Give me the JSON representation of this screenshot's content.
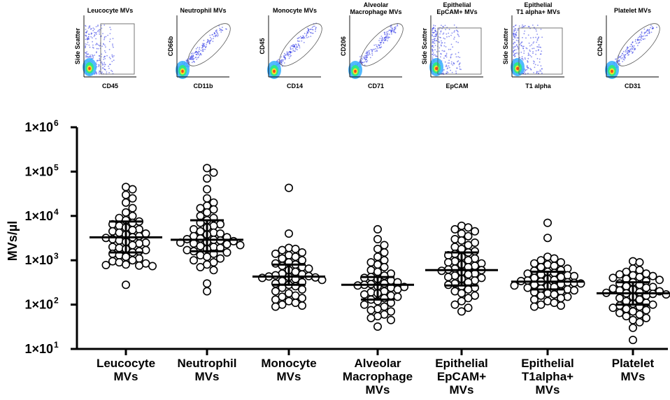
{
  "colors": {
    "axis": "#000000",
    "point_fill": "#ffffff",
    "point_stroke": "#000000",
    "density": [
      "#2b35e6",
      "#3fb3ff",
      "#2ee88a",
      "#f0e62a",
      "#f2421e"
    ]
  },
  "gating_panels": [
    {
      "title": [
        "Leucocyte MVs"
      ],
      "xlabel": "CD45",
      "ylabel": "Side Scatter",
      "gate": "rect"
    },
    {
      "title": [
        "Neutrophil MVs"
      ],
      "xlabel": "CD11b",
      "ylabel": "CD66b",
      "gate": "ellipse"
    },
    {
      "title": [
        "Monocyte MVs"
      ],
      "xlabel": "CD14",
      "ylabel": "CD45",
      "gate": "ellipse"
    },
    {
      "title": [
        "Alveolar",
        "Macrophage MVs"
      ],
      "xlabel": "CD71",
      "ylabel": "CD206",
      "gate": "ellipse"
    },
    {
      "title": [
        "Epithelial",
        "EpCAM+ MVs"
      ],
      "xlabel": "EpCAM",
      "ylabel": "Side Scatter",
      "gate": "rect"
    },
    {
      "title": [
        "Epithelial",
        "T1 alpha+ MVs"
      ],
      "xlabel": "T1 alpha",
      "ylabel": "Side Scatter",
      "gate": "rect"
    },
    {
      "title": [
        "Platelet MVs"
      ],
      "xlabel": "CD31",
      "ylabel": "CD42b",
      "gate": "ellipse"
    }
  ],
  "chart_data": {
    "type": "scatter",
    "ylabel": "MVs/µl",
    "yscale": "log",
    "ylim": [
      10,
      1000000
    ],
    "yticks": [
      {
        "mant": "1×10",
        "exp": "1"
      },
      {
        "mant": "1×10",
        "exp": "2"
      },
      {
        "mant": "1×10",
        "exp": "3"
      },
      {
        "mant": "1×10",
        "exp": "4"
      },
      {
        "mant": "1×10",
        "exp": "5"
      },
      {
        "mant": "1×10",
        "exp": "6"
      }
    ],
    "categories": [
      {
        "lines": [
          "Leucocyte",
          "MVs"
        ]
      },
      {
        "lines": [
          "Neutrophil",
          "MVs"
        ]
      },
      {
        "lines": [
          "Monocyte",
          "MVs"
        ]
      },
      {
        "lines": [
          "Alveolar",
          "Macrophage",
          "MVs"
        ]
      },
      {
        "lines": [
          "Epithelial",
          "EpCAM+",
          "MVs"
        ]
      },
      {
        "lines": [
          "Epithelial",
          "T1alpha+",
          "MVs"
        ]
      },
      {
        "lines": [
          "Platelet",
          "MVs"
        ]
      }
    ],
    "series": [
      {
        "median": 3300,
        "q1": 1500,
        "q3": 7500,
        "values": [
          45000,
          40000,
          30000,
          25000,
          20000,
          15000,
          12000,
          10000,
          9000,
          8000,
          7500,
          7000,
          6500,
          6000,
          5500,
          5000,
          4800,
          4500,
          4200,
          4000,
          3800,
          3500,
          3300,
          3200,
          3000,
          2800,
          2600,
          2500,
          2400,
          2200,
          2000,
          1900,
          1800,
          1700,
          1600,
          1500,
          1400,
          1300,
          1200,
          1100,
          1000,
          950,
          900,
          850,
          800,
          780,
          760,
          740,
          280
        ]
      },
      {
        "median": 2900,
        "q1": 1600,
        "q3": 8000,
        "values": [
          120000,
          95000,
          70000,
          40000,
          25000,
          20000,
          17000,
          15000,
          14000,
          12000,
          10000,
          9000,
          8000,
          7000,
          6500,
          6000,
          5500,
          5000,
          4500,
          4200,
          4000,
          3800,
          3500,
          3300,
          3100,
          3000,
          2900,
          2800,
          2700,
          2600,
          2500,
          2400,
          2300,
          2200,
          2100,
          2000,
          1900,
          1800,
          1700,
          1600,
          1500,
          1400,
          1300,
          1200,
          1100,
          1000,
          900,
          800,
          700,
          600,
          300,
          200
        ]
      },
      {
        "median": 430,
        "q1": 280,
        "q3": 800,
        "values": [
          43000,
          4000,
          1900,
          1800,
          1700,
          1500,
          1400,
          1300,
          1200,
          1100,
          1000,
          900,
          850,
          800,
          750,
          700,
          650,
          600,
          550,
          500,
          480,
          460,
          440,
          430,
          420,
          410,
          400,
          380,
          360,
          340,
          320,
          300,
          280,
          260,
          240,
          220,
          200,
          180,
          160,
          150,
          140,
          130,
          120,
          110,
          100,
          95,
          90
        ]
      },
      {
        "median": 280,
        "q1": 130,
        "q3": 420,
        "values": [
          5000,
          3000,
          2200,
          1800,
          1500,
          1200,
          1000,
          900,
          800,
          700,
          600,
          550,
          500,
          450,
          420,
          400,
          380,
          350,
          320,
          300,
          290,
          280,
          270,
          260,
          250,
          240,
          220,
          200,
          190,
          180,
          170,
          160,
          150,
          140,
          130,
          120,
          110,
          100,
          90,
          80,
          75,
          70,
          60,
          55,
          50,
          45,
          32
        ]
      },
      {
        "median": 600,
        "q1": 270,
        "q3": 1500,
        "values": [
          6000,
          5500,
          5000,
          4500,
          4000,
          3500,
          3000,
          2800,
          2500,
          2200,
          2000,
          1800,
          1600,
          1500,
          1400,
          1300,
          1200,
          1100,
          1000,
          950,
          900,
          850,
          800,
          750,
          700,
          650,
          620,
          600,
          580,
          550,
          500,
          480,
          450,
          420,
          400,
          380,
          350,
          320,
          300,
          280,
          260,
          240,
          220,
          200,
          180,
          160,
          140,
          120,
          100,
          85,
          70
        ]
      },
      {
        "median": 330,
        "q1": 220,
        "q3": 550,
        "values": [
          7000,
          3200,
          1200,
          1100,
          1000,
          900,
          850,
          800,
          750,
          700,
          650,
          600,
          580,
          550,
          520,
          500,
          480,
          460,
          440,
          420,
          400,
          380,
          360,
          350,
          340,
          330,
          320,
          310,
          300,
          290,
          280,
          270,
          260,
          250,
          240,
          230,
          220,
          210,
          200,
          190,
          180,
          170,
          160,
          150,
          140,
          130,
          120,
          110,
          100,
          95,
          90
        ]
      },
      {
        "median": 180,
        "q1": 100,
        "q3": 320,
        "values": [
          950,
          900,
          650,
          600,
          550,
          500,
          480,
          460,
          440,
          420,
          400,
          380,
          360,
          340,
          320,
          300,
          280,
          260,
          250,
          240,
          230,
          220,
          210,
          200,
          190,
          185,
          180,
          175,
          170,
          160,
          150,
          140,
          130,
          120,
          110,
          105,
          100,
          95,
          90,
          85,
          80,
          75,
          70,
          65,
          60,
          55,
          50,
          45,
          40,
          30,
          16
        ]
      }
    ]
  }
}
